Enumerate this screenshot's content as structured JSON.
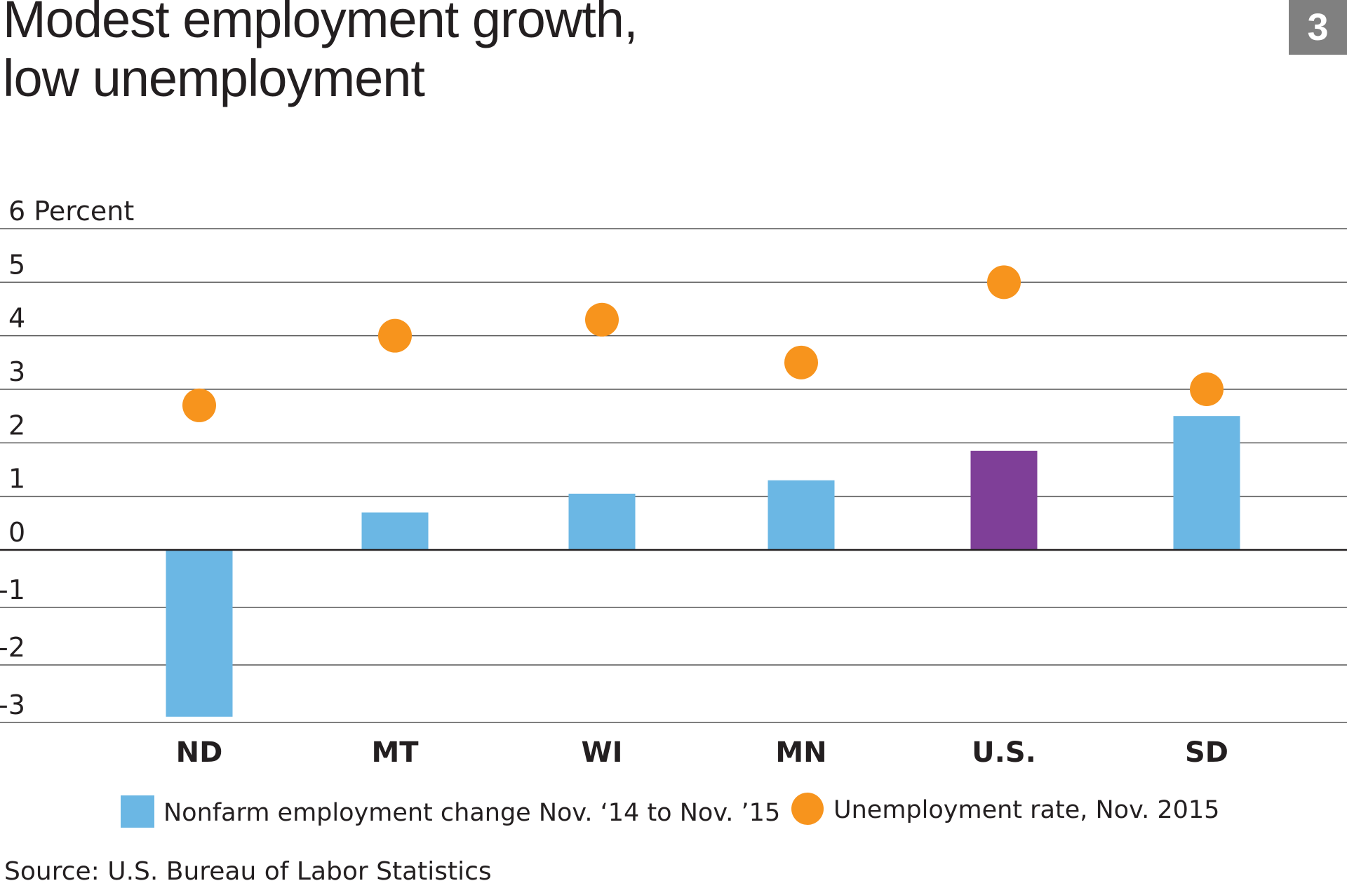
{
  "title_lines": [
    "Modest employment growth,",
    "low unemployment"
  ],
  "badge": "3",
  "source": "Source: U.S. Bureau of Labor Statistics",
  "colors": {
    "bar": "#6bb7e4",
    "bar_highlight": "#7f3f98",
    "dot": "#f7941d",
    "grid": "#555555",
    "zero_line": "#231f20"
  },
  "chart_data": {
    "type": "bar",
    "title": "Modest employment growth, low unemployment",
    "ylabel": "Percent",
    "ylim": [
      -3,
      6
    ],
    "yticks": [
      6,
      5,
      4,
      3,
      2,
      1,
      0,
      -1,
      -2,
      -3
    ],
    "ytick_labels": [
      "6 Percent",
      "5",
      "4",
      "3",
      "2",
      "1",
      "0",
      "-1",
      "-2",
      "-3"
    ],
    "categories": [
      "ND",
      "MT",
      "WI",
      "MN",
      "U.S.",
      "SD"
    ],
    "highlight_category": "U.S.",
    "series": [
      {
        "name": "Nonfarm employment change Nov. ‘14 to Nov. ’15",
        "type": "bar",
        "values": [
          -2.9,
          0.7,
          1.05,
          1.3,
          1.85,
          2.5
        ]
      },
      {
        "name": "Unemployment rate, Nov. 2015",
        "type": "scatter",
        "values": [
          2.7,
          4.0,
          4.3,
          3.5,
          5.0,
          3.0
        ]
      }
    ],
    "grid": true,
    "legend_position": "bottom"
  }
}
